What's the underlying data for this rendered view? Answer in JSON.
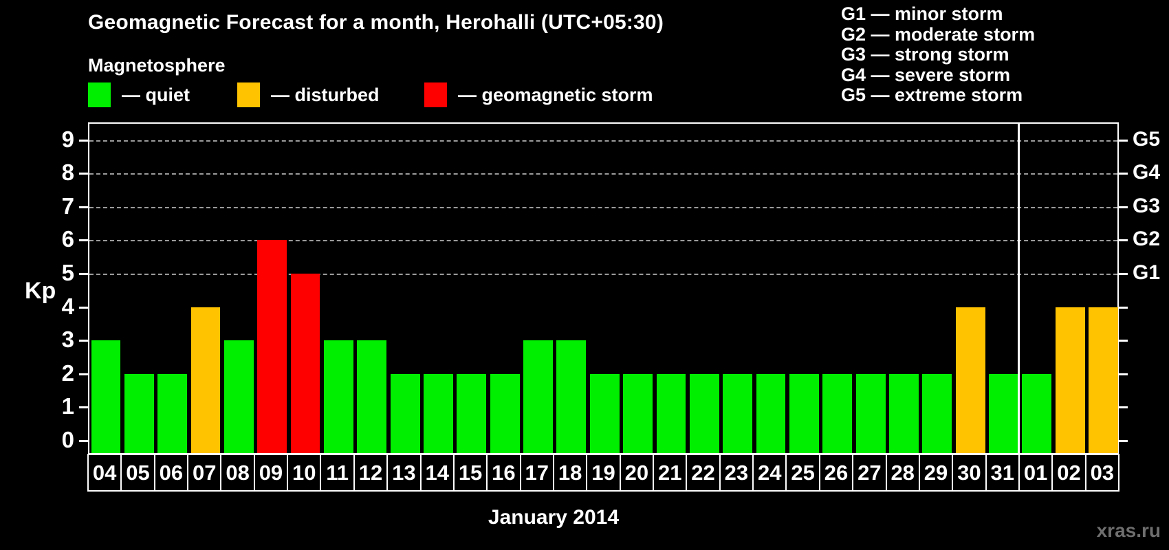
{
  "header": {
    "title": "Geomagnetic Forecast for a month, Herohalli (UTC+05:30)",
    "subtitle": "Magnetosphere"
  },
  "magnetosphere_legend": [
    {
      "key": "quiet",
      "label": "— quiet",
      "color": "#00ef00"
    },
    {
      "key": "disturbed",
      "label": "— disturbed",
      "color": "#ffc300"
    },
    {
      "key": "storm",
      "label": "— geomagnetic storm",
      "color": "#ff0000"
    }
  ],
  "g_scale_legend": [
    "G1 — minor storm",
    "G2 — moderate storm",
    "G3 — strong storm",
    "G4 — severe storm",
    "G5 — extreme storm"
  ],
  "watermark": "xras.ru",
  "chart_data": {
    "type": "bar",
    "title": "Geomagnetic Forecast for a month, Herohalli (UTC+05:30)",
    "ylabel": "Kp",
    "xlabel": "January 2014",
    "ylim": [
      0,
      9
    ],
    "yticks": [
      0,
      1,
      2,
      3,
      4,
      5,
      6,
      7,
      8,
      9
    ],
    "gridlines_at": [
      5,
      6,
      7,
      8,
      9
    ],
    "grid": "dashed horizontal lines at Kp 5..9",
    "legend_position": "top-left",
    "right_axis": [
      {
        "value": 5,
        "label": "G1"
      },
      {
        "value": 6,
        "label": "G2"
      },
      {
        "value": 7,
        "label": "G3"
      },
      {
        "value": 8,
        "label": "G4"
      },
      {
        "value": 9,
        "label": "G5"
      }
    ],
    "categories": [
      "04",
      "05",
      "06",
      "07",
      "08",
      "09",
      "10",
      "11",
      "12",
      "13",
      "14",
      "15",
      "16",
      "17",
      "18",
      "19",
      "20",
      "21",
      "22",
      "23",
      "24",
      "25",
      "26",
      "27",
      "28",
      "29",
      "30",
      "31",
      "01",
      "02",
      "03"
    ],
    "values": [
      3,
      2,
      2,
      4,
      3,
      6,
      5,
      3,
      3,
      2,
      2,
      2,
      2,
      3,
      3,
      2,
      2,
      2,
      2,
      2,
      2,
      2,
      2,
      2,
      2,
      2,
      4,
      2,
      2,
      4,
      4
    ],
    "statuses": [
      "quiet",
      "quiet",
      "quiet",
      "disturbed",
      "quiet",
      "storm",
      "storm",
      "quiet",
      "quiet",
      "quiet",
      "quiet",
      "quiet",
      "quiet",
      "quiet",
      "quiet",
      "quiet",
      "quiet",
      "quiet",
      "quiet",
      "quiet",
      "quiet",
      "quiet",
      "quiet",
      "quiet",
      "quiet",
      "quiet",
      "disturbed",
      "quiet",
      "quiet",
      "disturbed",
      "disturbed"
    ],
    "colors": {
      "quiet": "#00ef00",
      "disturbed": "#ffc300",
      "storm": "#ff0000"
    },
    "month_separator_after_index": 27
  }
}
